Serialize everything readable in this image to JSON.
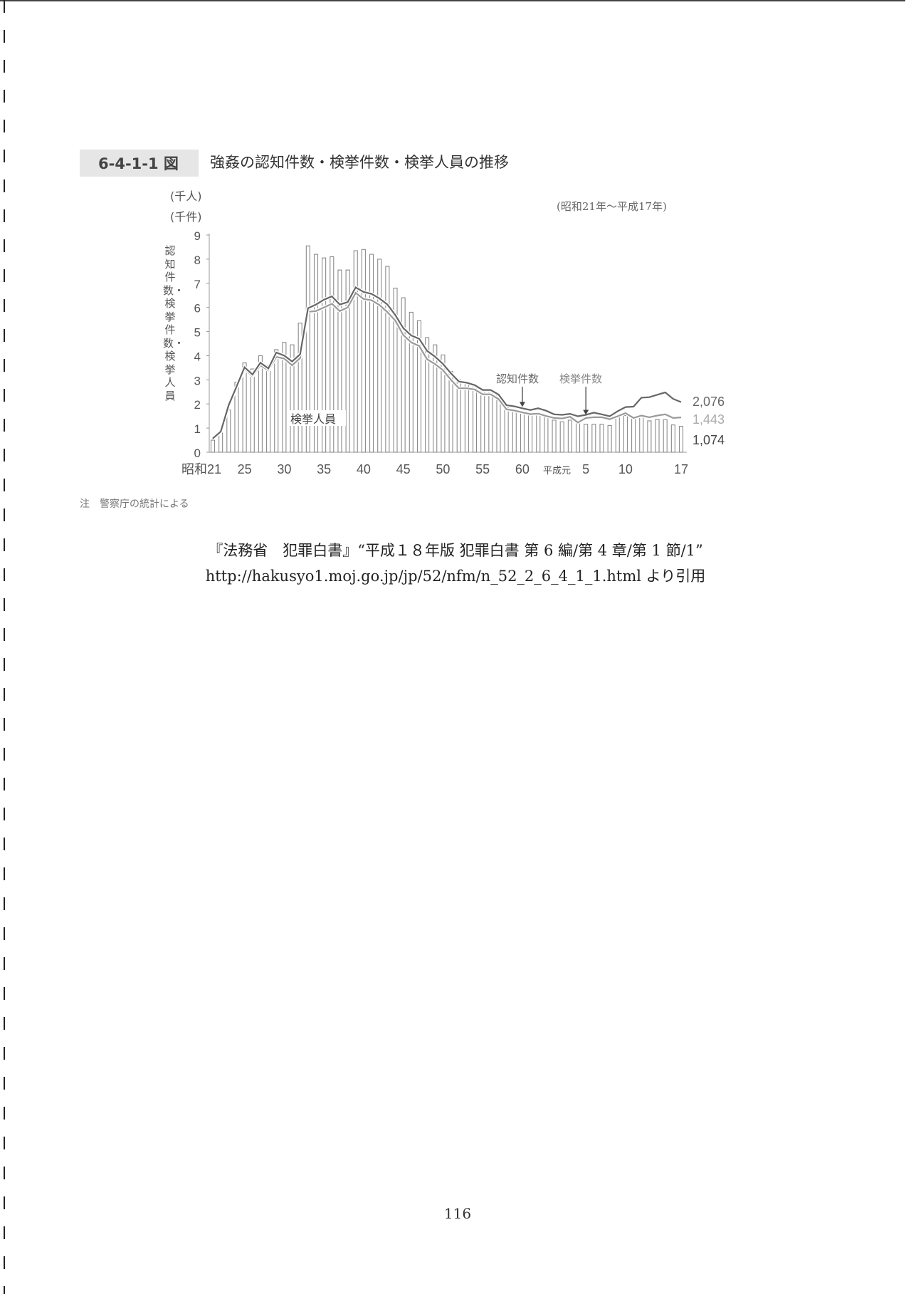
{
  "figure": {
    "number": "6-4-1-1 図",
    "title": "強姦の認知件数・検挙件数・検挙人員の推移",
    "unit_persons": "(千人)",
    "unit_cases": "(千件)",
    "period": "(昭和21年～平成17年)",
    "note": "注　警察庁の統計による"
  },
  "citation": {
    "line1": "『法務省　犯罪白書』“平成１８年版 犯罪白書 第 6 編/第 4 章/第 1 節/1”",
    "line2": "http://hakusyo1.moj.go.jp/jp/52/nfm/n_52_2_6_4_1_1.html より引用"
  },
  "page_number": "116",
  "chart_data": {
    "type": "bar+line",
    "ylabel": "認知件数・検挙件数・検挙人員",
    "ylim": [
      0,
      9
    ],
    "yticks": [
      "0",
      "1",
      "2",
      "3",
      "4",
      "5",
      "6",
      "7",
      "8",
      "9"
    ],
    "xtick_labels": [
      {
        "label": "昭和21",
        "index": 0
      },
      {
        "label": "25",
        "index": 4
      },
      {
        "label": "30",
        "index": 9
      },
      {
        "label": "35",
        "index": 14
      },
      {
        "label": "40",
        "index": 19
      },
      {
        "label": "45",
        "index": 24
      },
      {
        "label": "50",
        "index": 29
      },
      {
        "label": "55",
        "index": 34
      },
      {
        "label": "60",
        "index": 39
      },
      {
        "label": "平成元",
        "index": 43
      },
      {
        "label": "5",
        "index": 47
      },
      {
        "label": "10",
        "index": 52
      },
      {
        "label": "17",
        "index": 59
      }
    ],
    "years": [
      "S21",
      "S22",
      "S23",
      "S24",
      "S25",
      "S26",
      "S27",
      "S28",
      "S29",
      "S30",
      "S31",
      "S32",
      "S33",
      "S34",
      "S35",
      "S36",
      "S37",
      "S38",
      "S39",
      "S40",
      "S41",
      "S42",
      "S43",
      "S44",
      "S45",
      "S46",
      "S47",
      "S48",
      "S49",
      "S50",
      "S51",
      "S52",
      "S53",
      "S54",
      "S55",
      "S56",
      "S57",
      "S58",
      "S59",
      "S60",
      "S61",
      "S62",
      "S63",
      "H1",
      "H2",
      "H3",
      "H4",
      "H5",
      "H6",
      "H7",
      "H8",
      "H9",
      "H10",
      "H11",
      "H12",
      "H13",
      "H14",
      "H15",
      "H16",
      "H17"
    ],
    "series": [
      {
        "name": "検挙人員",
        "kind": "bar",
        "color": "#8a8a8a",
        "values": [
          0.5,
          0.8,
          1.75,
          2.9,
          3.7,
          3.45,
          4.0,
          3.6,
          4.25,
          4.55,
          4.45,
          5.35,
          8.55,
          8.2,
          8.05,
          8.1,
          7.55,
          7.55,
          8.35,
          8.4,
          8.2,
          8.0,
          7.7,
          6.8,
          6.4,
          5.8,
          5.45,
          4.75,
          4.45,
          4.03,
          3.35,
          3.0,
          2.85,
          2.75,
          2.6,
          2.6,
          2.35,
          1.85,
          1.75,
          1.67,
          1.54,
          1.57,
          1.45,
          1.33,
          1.26,
          1.33,
          1.23,
          1.16,
          1.16,
          1.16,
          1.11,
          1.45,
          1.52,
          1.4,
          1.49,
          1.3,
          1.36,
          1.35,
          1.13,
          1.074
        ],
        "end_label": "1,074"
      },
      {
        "name": "認知件数",
        "kind": "line",
        "color": "#666666",
        "values": [
          0.57,
          0.86,
          1.95,
          2.73,
          3.52,
          3.22,
          3.71,
          3.47,
          4.13,
          4.0,
          3.76,
          4.06,
          5.97,
          6.12,
          6.32,
          6.46,
          6.12,
          6.22,
          6.83,
          6.64,
          6.56,
          6.37,
          6.12,
          5.68,
          5.14,
          4.84,
          4.7,
          4.2,
          3.96,
          3.66,
          3.27,
          2.93,
          2.88,
          2.78,
          2.58,
          2.58,
          2.39,
          1.95,
          1.9,
          1.82,
          1.75,
          1.82,
          1.72,
          1.57,
          1.55,
          1.59,
          1.49,
          1.55,
          1.64,
          1.57,
          1.49,
          1.7,
          1.87,
          1.89,
          2.26,
          2.28,
          2.38,
          2.48,
          2.21,
          2.076
        ],
        "end_label": "2,076",
        "annotation_index": 39
      },
      {
        "name": "検挙件数",
        "kind": "line",
        "color": "#9a9a9a",
        "values": [
          0.55,
          0.85,
          1.9,
          2.7,
          3.45,
          3.15,
          3.6,
          3.4,
          3.95,
          3.88,
          3.6,
          3.9,
          5.82,
          5.85,
          6.0,
          6.15,
          5.85,
          6.0,
          6.6,
          6.35,
          6.3,
          6.1,
          5.8,
          5.45,
          4.85,
          4.55,
          4.4,
          3.85,
          3.65,
          3.4,
          3.0,
          2.65,
          2.65,
          2.6,
          2.4,
          2.4,
          2.2,
          1.78,
          1.73,
          1.65,
          1.58,
          1.6,
          1.5,
          1.42,
          1.4,
          1.47,
          1.23,
          1.42,
          1.45,
          1.45,
          1.37,
          1.49,
          1.62,
          1.42,
          1.52,
          1.45,
          1.52,
          1.57,
          1.42,
          1.443
        ],
        "end_label": "1,443",
        "annotation_index": 47
      }
    ]
  }
}
